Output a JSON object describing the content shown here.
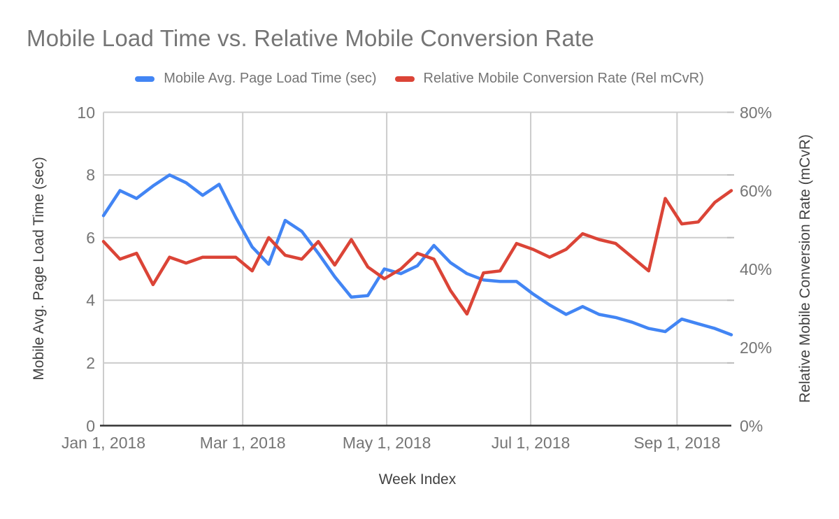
{
  "title": "Mobile Load Time vs. Relative Mobile Conversion Rate",
  "legend": [
    {
      "label": "Mobile Avg. Page Load Time (sec)",
      "color": "#4285f4"
    },
    {
      "label": "Relative Mobile Conversion Rate (Rel mCvR)",
      "color": "#db4437"
    }
  ],
  "colors": {
    "title_text": "#757575",
    "tick_text": "#757575",
    "axis_title_text": "#424242",
    "gridline": "#cccccc",
    "axis_line": "#333333",
    "right_tick_stub": "#bdbdbd",
    "series_blue": "#4285f4",
    "series_red": "#db4437"
  },
  "chart_data": {
    "type": "line",
    "title": "Mobile Load Time vs. Relative Mobile Conversion Rate",
    "x_axis_title": "Week Index",
    "x_description": "weekly data points; week 0 = Jan 1, 2018; 39 points total",
    "grid": true,
    "legend_position": "top",
    "x_ticks": [
      {
        "label": "Jan 1, 2018",
        "week": 0
      },
      {
        "label": "Mar 1, 2018",
        "week": 8.4286
      },
      {
        "label": "May 1, 2018",
        "week": 17.1429
      },
      {
        "label": "Jul 1, 2018",
        "week": 25.8571
      },
      {
        "label": "Sep 1, 2018",
        "week": 34.7143
      }
    ],
    "y_left": {
      "label": "Mobile Avg. Page Load Time (sec)",
      "range": [
        0,
        10
      ],
      "ticks": [
        10,
        8,
        6,
        4,
        2,
        0
      ]
    },
    "y_right": {
      "label": "Relative Mobile Conversion Rate (mCvR)",
      "range": [
        0,
        80
      ],
      "ticks": [
        {
          "label": "80%",
          "value": 80
        },
        {
          "label": "60%",
          "value": 60
        },
        {
          "label": "40%",
          "value": 40
        },
        {
          "label": "20%",
          "value": 20
        },
        {
          "label": "0%",
          "value": 0
        }
      ]
    },
    "series": [
      {
        "name": "Mobile Avg. Page Load Time (sec)",
        "axis": "left",
        "unit": "sec",
        "color": "#4285f4",
        "values": [
          6.7,
          7.5,
          7.25,
          7.65,
          8.0,
          7.75,
          7.35,
          7.7,
          6.65,
          5.7,
          5.15,
          6.55,
          6.2,
          5.5,
          4.75,
          4.1,
          4.15,
          5.0,
          4.85,
          5.1,
          5.75,
          5.2,
          4.85,
          4.65,
          4.6,
          4.6,
          4.2,
          3.85,
          3.55,
          3.8,
          3.55,
          3.45,
          3.3,
          3.1,
          3.0,
          3.4,
          3.25,
          3.1,
          2.9
        ]
      },
      {
        "name": "Relative Mobile Conversion Rate (Rel mCvR)",
        "axis": "right",
        "unit": "%",
        "color": "#db4437",
        "values": [
          47,
          42.5,
          44,
          36,
          43,
          41.5,
          43,
          43,
          43,
          39.5,
          48,
          43.5,
          42.5,
          47,
          41,
          47.5,
          40.5,
          37.5,
          40,
          44,
          42.5,
          34.5,
          28.5,
          39,
          39.5,
          46.5,
          45,
          43,
          45,
          49,
          47.5,
          46.5,
          43,
          39.5,
          58,
          51.5,
          52,
          57,
          60
        ]
      }
    ]
  }
}
